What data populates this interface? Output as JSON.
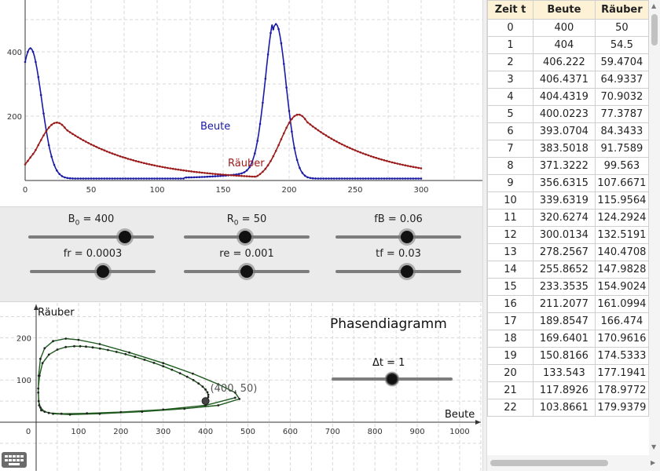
{
  "graph1": {
    "x_ticks": [
      "0",
      "50",
      "100",
      "150",
      "200",
      "250",
      "300"
    ],
    "y_ticks": [
      "200",
      "400"
    ],
    "beute_label": "Beute",
    "raeuber_label": "Räuber",
    "beute_color": "#1a1aa6",
    "raeuber_color": "#9b1b1b"
  },
  "sliders": [
    {
      "name": "B0",
      "label_main": "B",
      "label_sub": "0",
      "label_rest": " = 400",
      "position": 0.77
    },
    {
      "name": "R0",
      "label_main": "R",
      "label_sub": "0",
      "label_rest": " = 50",
      "position": 0.49
    },
    {
      "name": "fB",
      "label_main": "fB = 0.06",
      "label_sub": "",
      "label_rest": "",
      "position": 0.57
    },
    {
      "name": "fr",
      "label_main": "fr = 0.0003",
      "label_sub": "",
      "label_rest": "",
      "position": 0.58
    },
    {
      "name": "re",
      "label_main": "re = 0.001",
      "label_sub": "",
      "label_rest": "",
      "position": 0.5
    },
    {
      "name": "tf",
      "label_main": "tf = 0.03",
      "label_sub": "",
      "label_rest": "",
      "position": 0.57
    }
  ],
  "graph2": {
    "title": "Phasendiagramm",
    "x_axis_label": "Beute",
    "y_axis_label": "Räuber",
    "x_ticks": [
      "0",
      "100",
      "200",
      "300",
      "400",
      "500",
      "600",
      "700",
      "800",
      "900",
      "1000"
    ],
    "y_ticks": [
      "100",
      "200"
    ],
    "point_label": "(400, 50)",
    "dt_label": "Δt = 1",
    "dt_position": 0.5,
    "curve_color": "#1f5a1f"
  },
  "table": {
    "headers": [
      "Zeit t",
      "Beute",
      "Räuber"
    ],
    "rows": [
      [
        "0",
        "400",
        "50"
      ],
      [
        "1",
        "404",
        "54.5"
      ],
      [
        "2",
        "406.222",
        "59.4704"
      ],
      [
        "3",
        "406.4371",
        "64.9337"
      ],
      [
        "4",
        "404.4319",
        "70.9032"
      ],
      [
        "5",
        "400.0223",
        "77.3787"
      ],
      [
        "6",
        "393.0704",
        "84.3433"
      ],
      [
        "7",
        "383.5018",
        "91.7589"
      ],
      [
        "8",
        "371.3222",
        "99.563"
      ],
      [
        "9",
        "356.6315",
        "107.6671"
      ],
      [
        "10",
        "339.6319",
        "115.9564"
      ],
      [
        "11",
        "320.6274",
        "124.2924"
      ],
      [
        "12",
        "300.0134",
        "132.5191"
      ],
      [
        "13",
        "278.2567",
        "140.4708"
      ],
      [
        "14",
        "255.8652",
        "147.9828"
      ],
      [
        "15",
        "233.3535",
        "154.9024"
      ],
      [
        "16",
        "211.2077",
        "161.0994"
      ],
      [
        "17",
        "189.8547",
        "166.474"
      ],
      [
        "18",
        "169.6401",
        "170.9616"
      ],
      [
        "19",
        "150.8166",
        "174.5333"
      ],
      [
        "20",
        "133.543",
        "177.1941"
      ],
      [
        "21",
        "117.8926",
        "178.9772"
      ],
      [
        "22",
        "103.8661",
        "179.9379"
      ]
    ]
  }
}
